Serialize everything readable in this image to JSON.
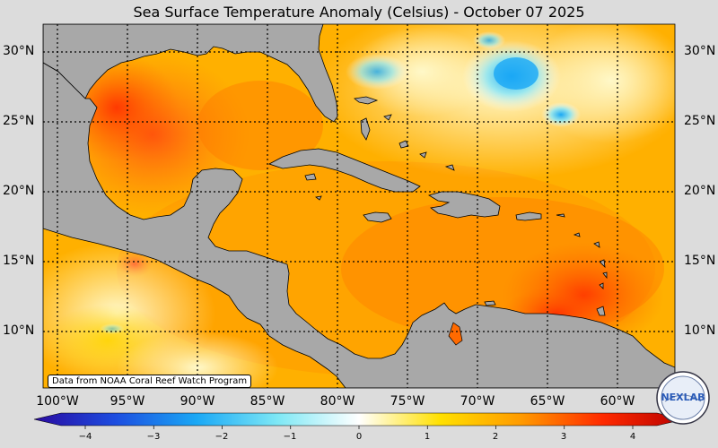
{
  "title": "Sea Surface Temperature Anomaly (Celsius) - October 07 2025",
  "credit": "Data from NOAA Coral Reef Watch Program",
  "logo_text": "NEXLAB",
  "map": {
    "lat_labels": [
      "30°N",
      "25°N",
      "20°N",
      "15°N",
      "10°N"
    ],
    "lon_labels": [
      "100°W",
      "95°W",
      "90°W",
      "85°W",
      "80°W",
      "75°W",
      "70°W",
      "65°W",
      "60°W"
    ],
    "lat_range": [
      6,
      32
    ],
    "lon_range": [
      -101,
      -57
    ],
    "grid": true
  },
  "colorbar": {
    "min": -4,
    "max": 4,
    "ticks": [
      "−4",
      "−3",
      "−2",
      "−1",
      "0",
      "1",
      "2",
      "3",
      "4"
    ],
    "colors": [
      "#2a0aa0",
      "#1d4de0",
      "#1aa8f5",
      "#7ee8f5",
      "#ffffff",
      "#ffe000",
      "#ff9a00",
      "#ff2a00",
      "#b80000"
    ]
  },
  "colors": {
    "land": "#a8a8a8",
    "coast": "#000000",
    "background": "#dcdcdc"
  }
}
